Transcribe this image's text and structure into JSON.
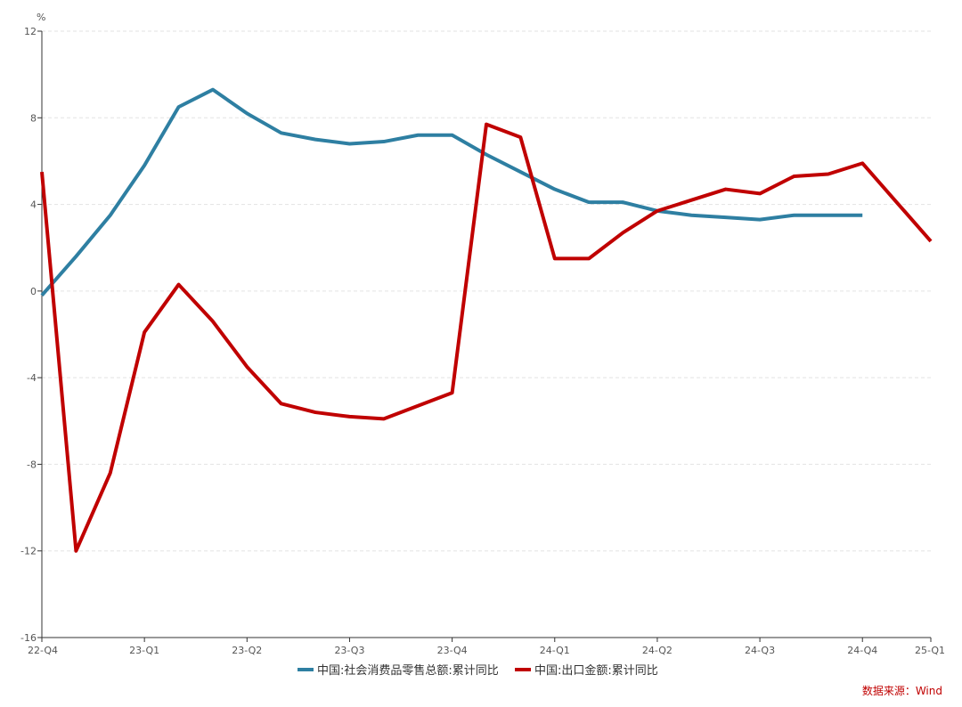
{
  "chart_data": {
    "type": "line",
    "title": "",
    "xlabel": "",
    "ylabel": "%",
    "ylim": [
      -16,
      12
    ],
    "y_ticks": [
      12,
      8,
      4,
      0,
      -4,
      -8,
      -12,
      -16
    ],
    "x_count": 27,
    "x_ticks": [
      {
        "index": 0,
        "label": "22-Q4"
      },
      {
        "index": 3,
        "label": "23-Q1"
      },
      {
        "index": 6,
        "label": "23-Q2"
      },
      {
        "index": 9,
        "label": "23-Q3"
      },
      {
        "index": 12,
        "label": "23-Q4"
      },
      {
        "index": 15,
        "label": "24-Q1"
      },
      {
        "index": 18,
        "label": "24-Q2"
      },
      {
        "index": 21,
        "label": "24-Q3"
      },
      {
        "index": 24,
        "label": "24-Q4"
      },
      {
        "index": 26,
        "label": "25-Q1"
      }
    ],
    "grid": true,
    "legend_position": "bottom",
    "series": [
      {
        "name": "中国:社会消费品零售总额:累计同比",
        "color": "#2e7fa2",
        "values": [
          -0.2,
          1.6,
          3.5,
          5.8,
          8.5,
          9.3,
          8.2,
          7.3,
          7.0,
          6.8,
          6.9,
          7.2,
          7.2,
          6.3,
          5.5,
          4.7,
          4.1,
          4.1,
          3.7,
          3.5,
          3.4,
          3.3,
          3.5,
          3.5,
          3.5,
          null,
          null
        ]
      },
      {
        "name": "中国:出口金额:累计同比",
        "color": "#c00000",
        "values": [
          5.5,
          -12.0,
          -8.4,
          -1.9,
          0.3,
          -1.4,
          -3.5,
          -5.2,
          -5.6,
          -5.8,
          -5.9,
          -5.3,
          -4.7,
          7.7,
          7.1,
          1.5,
          1.5,
          2.7,
          3.7,
          4.2,
          4.7,
          4.5,
          5.3,
          5.4,
          5.9,
          4.1,
          2.3
        ]
      }
    ]
  },
  "source_note": "数据来源：Wind"
}
